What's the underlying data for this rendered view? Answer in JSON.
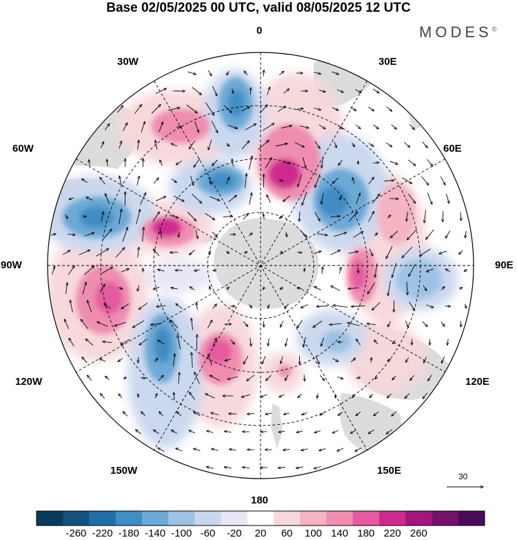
{
  "title": "Base 02/05/2025 00 UTC, valid 08/05/2025 12 UTC",
  "brand": "MODES",
  "brand_mark": "©",
  "longitude_labels": {
    "deg0": "0",
    "e30": "30E",
    "e60": "60E",
    "e90": "90E",
    "e120": "120E",
    "e150": "150E",
    "deg180": "180",
    "w150": "150W",
    "w120": "120W",
    "w90": "90W",
    "w60": "60W",
    "w30": "30W"
  },
  "vector_scale_label": "30",
  "colorbar": {
    "tick_labels": [
      "-260",
      "-220",
      "-180",
      "-140",
      "-100",
      "-60",
      "-20",
      "20",
      "60",
      "100",
      "140",
      "180",
      "220",
      "260"
    ],
    "colors": [
      "#0a3a5c",
      "#13527f",
      "#1f6ea8",
      "#3f8dc4",
      "#6da9d6",
      "#9ec2e4",
      "#c9d6ee",
      "#e8e6f4",
      "#ffffff",
      "#f7d7db",
      "#f4b4c2",
      "#ef8db0",
      "#e65aa0",
      "#cf2990",
      "#a3157f",
      "#74116e",
      "#4a0b5c"
    ]
  },
  "map": {
    "land_color": "#d4d4d4",
    "positive_color": "#e65aa0",
    "negative_color": "#1f6ea8"
  }
}
